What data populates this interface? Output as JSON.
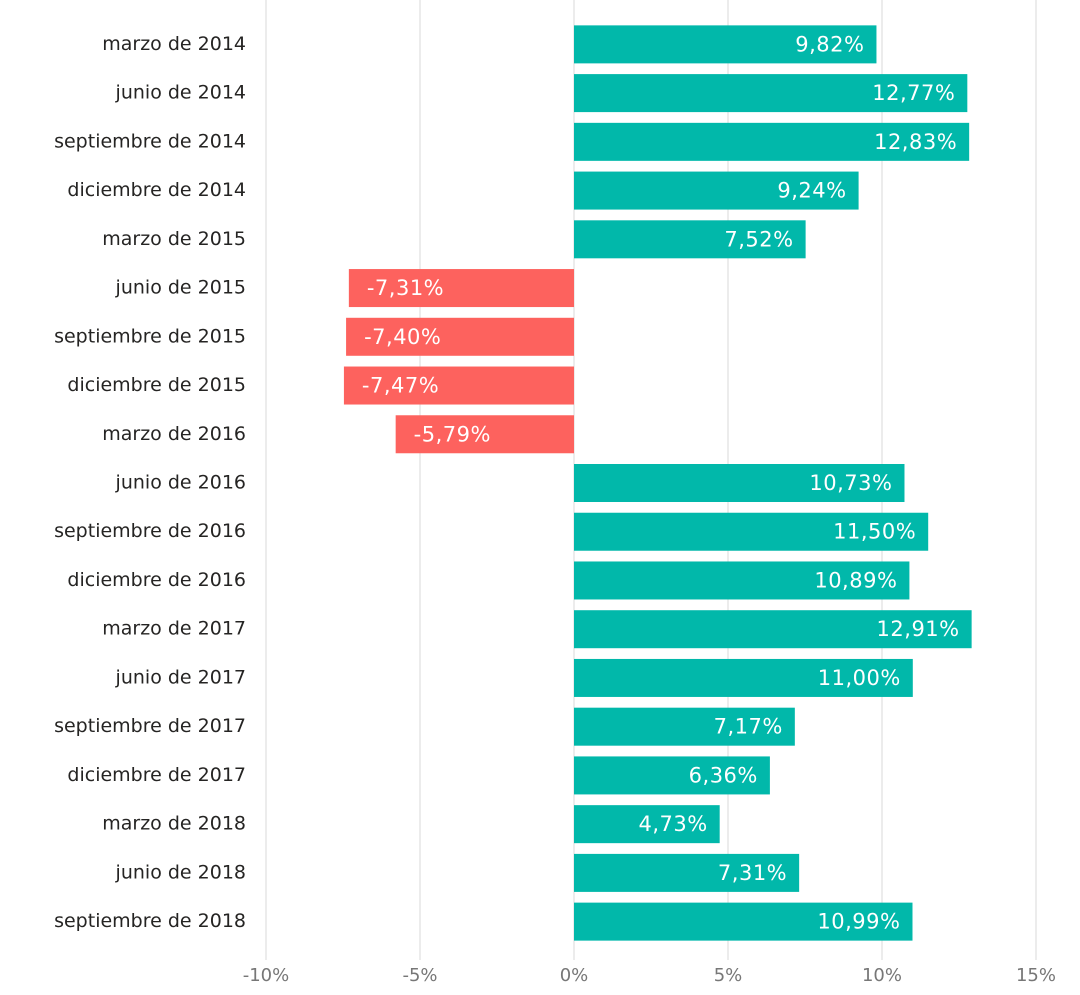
{
  "chart_data": {
    "type": "bar",
    "orientation": "horizontal",
    "categories": [
      "marzo de 2014",
      "junio de 2014",
      "septiembre de 2014",
      "diciembre de 2014",
      "marzo de 2015",
      "junio de 2015",
      "septiembre de 2015",
      "diciembre de 2015",
      "marzo de 2016",
      "junio de 2016",
      "septiembre de 2016",
      "diciembre de 2016",
      "marzo de 2017",
      "junio de 2017",
      "septiembre de 2017",
      "diciembre de 2017",
      "marzo de 2018",
      "junio de 2018",
      "septiembre de 2018"
    ],
    "values": [
      9.82,
      12.77,
      12.83,
      9.24,
      7.52,
      -7.31,
      -7.4,
      -7.47,
      -5.79,
      10.73,
      11.5,
      10.89,
      12.91,
      11.0,
      7.17,
      6.36,
      4.73,
      7.31,
      10.99
    ],
    "value_labels": [
      "9,82%",
      "12,77%",
      "12,83%",
      "9,24%",
      "7,52%",
      "-7,31%",
      "-7,40%",
      "-7,47%",
      "-5,79%",
      "10,73%",
      "11,50%",
      "10,89%",
      "12,91%",
      "11,00%",
      "7,17%",
      "6,36%",
      "4,73%",
      "7,31%",
      "10,99%"
    ],
    "color": "#01b8aa",
    "negative_color": "#fd625e",
    "xlim": [
      -10,
      15
    ],
    "xticks": [
      {
        "value": -10,
        "label": "-10%"
      },
      {
        "value": -5,
        "label": "-5%"
      },
      {
        "value": 0,
        "label": "0%"
      },
      {
        "value": 5,
        "label": "5%"
      },
      {
        "value": 10,
        "label": "10%"
      },
      {
        "value": 15,
        "label": "15%"
      }
    ],
    "grid": true
  }
}
